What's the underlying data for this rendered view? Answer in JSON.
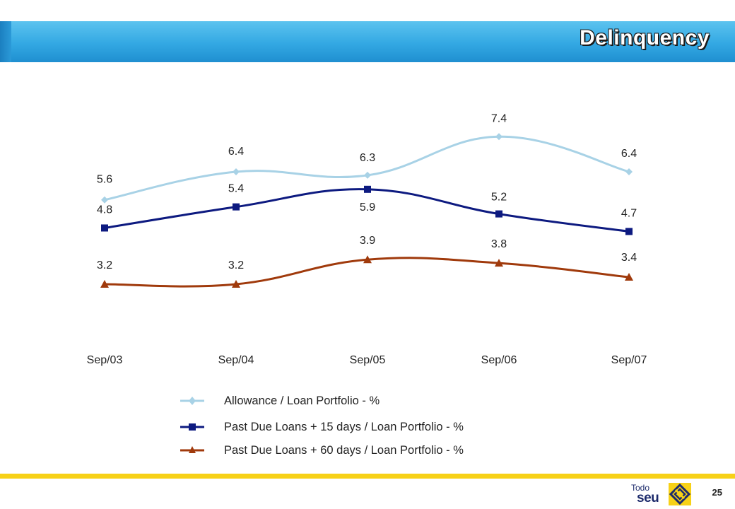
{
  "title": "Delinquency",
  "chart_data": {
    "type": "line",
    "categories": [
      "Sep/03",
      "Sep/04",
      "Sep/05",
      "Sep/06",
      "Sep/07"
    ],
    "series": [
      {
        "name": "Allowance / Loan Portfolio - %",
        "values": [
          5.6,
          6.4,
          6.3,
          7.4,
          6.4
        ],
        "color": "#a8d2e6",
        "marker": "diamond"
      },
      {
        "name": "Past Due Loans + 15 days / Loan Portfolio - %",
        "values": [
          4.8,
          5.4,
          5.9,
          5.2,
          4.7
        ],
        "color": "#0d1a80",
        "marker": "square"
      },
      {
        "name": "Past Due Loans + 60 days / Loan Portfolio - %",
        "values": [
          3.2,
          3.2,
          3.9,
          3.8,
          3.4
        ],
        "color": "#a03a0c",
        "marker": "triangle"
      }
    ],
    "data_labels": true,
    "legend_position": "bottom",
    "grid": false
  },
  "legend": {
    "items": [
      "Allowance / Loan Portfolio - %",
      "Past Due Loans + 15 days / Loan Portfolio - %",
      "Past Due Loans + 60 days / Loan Portfolio - %"
    ]
  },
  "footer": {
    "brand_todo": "Todo",
    "brand_seu": "seu",
    "page_number": "25"
  },
  "colors": {
    "title_bar": "#33a8e3",
    "footer_line": "#f7d117",
    "brand": "#1c2a6b",
    "logo_yellow": "#f7d117"
  }
}
